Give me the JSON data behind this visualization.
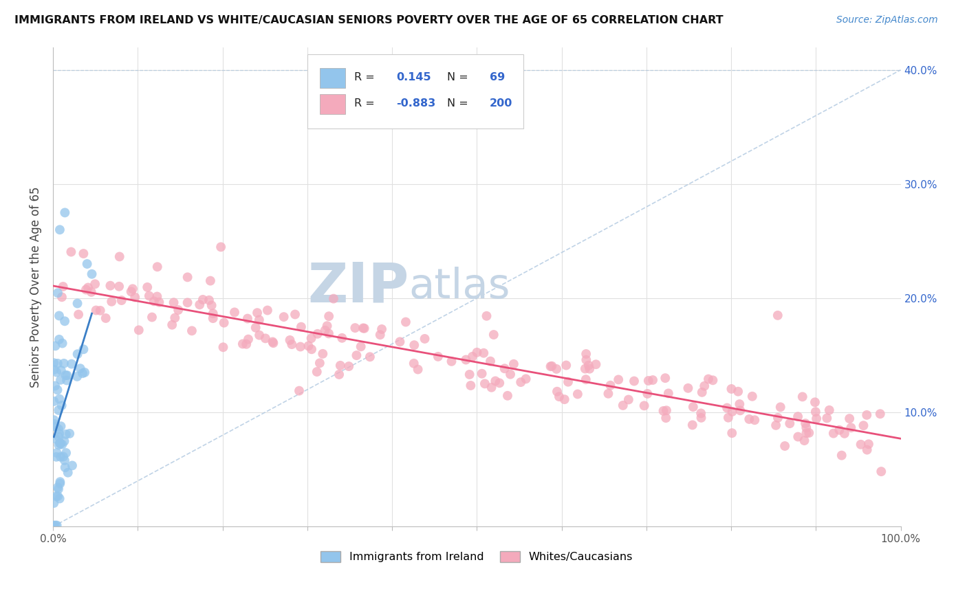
{
  "title": "IMMIGRANTS FROM IRELAND VS WHITE/CAUCASIAN SENIORS POVERTY OVER THE AGE OF 65 CORRELATION CHART",
  "source": "Source: ZipAtlas.com",
  "ylabel": "Seniors Poverty Over the Age of 65",
  "r_blue": 0.145,
  "n_blue": 69,
  "r_pink": -0.883,
  "n_pink": 200,
  "xlim": [
    0,
    1
  ],
  "ylim": [
    0,
    0.42
  ],
  "blue_color": "#93C5EC",
  "pink_color": "#F4AABC",
  "blue_line_color": "#3A7EC6",
  "pink_line_color": "#E8507A",
  "diag_line_color": "#B0C8E0",
  "legend_r_color": "#3366CC",
  "watermark_zip_color": "#C5D5E5",
  "watermark_atlas_color": "#C5D5E5",
  "background_color": "#FFFFFF",
  "grid_color": "#E0E0E0",
  "axis_color": "#BBBBBB",
  "tick_label_color": "#555555",
  "ylabel_color": "#444444",
  "title_color": "#111111",
  "source_color": "#4488CC"
}
